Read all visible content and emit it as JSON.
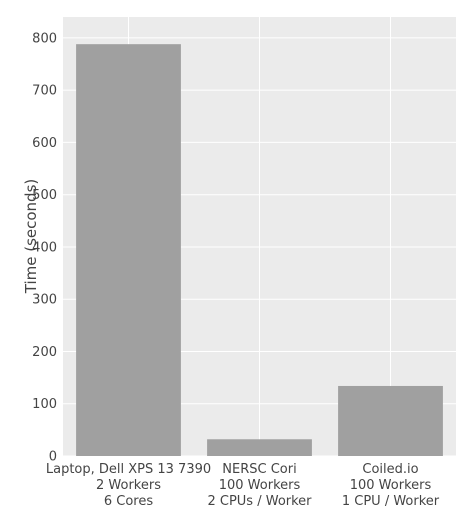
{
  "chart_data": {
    "type": "bar",
    "title": "",
    "xlabel": "",
    "ylabel": "Time (seconds)",
    "ylim": [
      0,
      840
    ],
    "yticks": [
      0,
      100,
      200,
      300,
      400,
      500,
      600,
      700,
      800
    ],
    "grid": true,
    "categories": [
      [
        "Laptop, Dell XPS 13 7390",
        "2 Workers",
        "6 Cores"
      ],
      [
        "NERSC Cori",
        "100 Workers",
        "2 CPUs / Worker"
      ],
      [
        "Coiled.io",
        "100 Workers",
        "1 CPU / Worker"
      ]
    ],
    "values": [
      788,
      32,
      134
    ],
    "colors": {
      "bar": "#a0a0a0",
      "plot_background": "#ebebeb",
      "grid": "#ffffff"
    }
  }
}
